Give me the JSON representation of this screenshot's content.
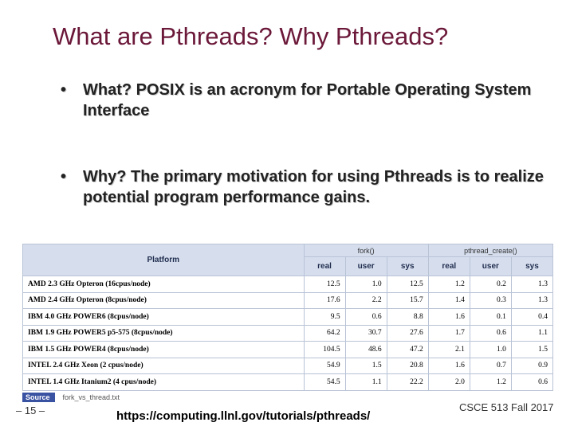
{
  "slide": {
    "title": "What are Pthreads? Why Pthreads?",
    "bullets": [
      {
        "marker": "•",
        "text": "What? POSIX is an acronym for Portable Operating System Interface"
      },
      {
        "marker": "•",
        "text": "Why? The primary motivation for using Pthreads is to realize potential program performance gains."
      }
    ]
  },
  "table": {
    "platform_header": "Platform",
    "groups": [
      "fork()",
      "pthread_create()"
    ],
    "subheaders": [
      "real",
      "user",
      "sys",
      "real",
      "user",
      "sys"
    ],
    "rows": [
      {
        "platform": "AMD 2.3 GHz Opteron (16cpus/node)",
        "values": [
          "12.5",
          "1.0",
          "12.5",
          "1.2",
          "0.2",
          "1.3"
        ]
      },
      {
        "platform": "AMD 2.4 GHz Opteron (8cpus/node)",
        "values": [
          "17.6",
          "2.2",
          "15.7",
          "1.4",
          "0.3",
          "1.3"
        ]
      },
      {
        "platform": "IBM 4.0 GHz POWER6 (8cpus/node)",
        "values": [
          "9.5",
          "0.6",
          "8.8",
          "1.6",
          "0.1",
          "0.4"
        ]
      },
      {
        "platform": "IBM 1.9 GHz POWER5 p5-575 (8cpus/node)",
        "values": [
          "64.2",
          "30.7",
          "27.6",
          "1.7",
          "0.6",
          "1.1"
        ]
      },
      {
        "platform": "IBM 1.5 GHz POWER4 (8cpus/node)",
        "values": [
          "104.5",
          "48.6",
          "47.2",
          "2.1",
          "1.0",
          "1.5"
        ]
      },
      {
        "platform": "INTEL 2.4 GHz Xeon (2 cpus/node)",
        "values": [
          "54.9",
          "1.5",
          "20.8",
          "1.6",
          "0.7",
          "0.9"
        ]
      },
      {
        "platform": "INTEL 1.4 GHz Itanium2 (4 cpus/node)",
        "values": [
          "54.5",
          "1.1",
          "22.2",
          "2.0",
          "1.2",
          "0.6"
        ]
      }
    ],
    "source_label": "Source",
    "source_file": "fork_vs_thread.txt"
  },
  "footer": {
    "page": "– 15 –",
    "url": "https://computing.llnl.gov/tutorials/pthreads/",
    "course": "CSCE 513 Fall 2017"
  }
}
